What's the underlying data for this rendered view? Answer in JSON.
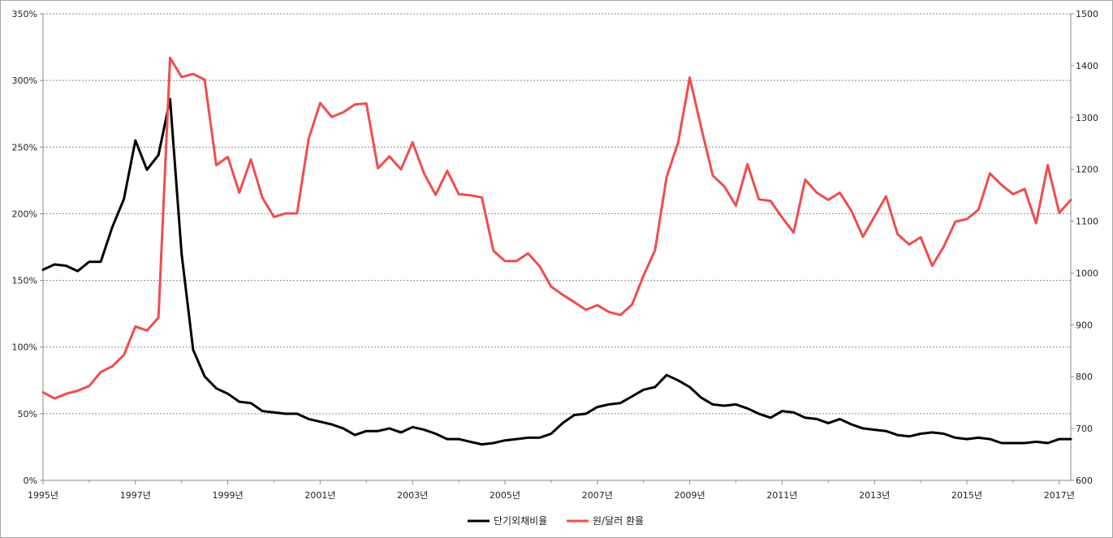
{
  "chart_data": {
    "type": "line",
    "grid": "horizontal dashed",
    "legend_position": "bottom",
    "x": {
      "unit": "year",
      "range": [
        1995,
        2017.25
      ],
      "tick_labels": [
        "1995년",
        "1997년",
        "1999년",
        "2001년",
        "2003년",
        "2005년",
        "2007년",
        "2009년",
        "2011년",
        "2013년",
        "2015년",
        "2017년"
      ]
    },
    "y_left": {
      "range": [
        0,
        350
      ],
      "tick_labels": [
        "0%",
        "50%",
        "100%",
        "150%",
        "200%",
        "250%",
        "300%",
        "350%"
      ]
    },
    "y_right": {
      "range": [
        600,
        1500
      ],
      "tick_labels": [
        "600",
        "700",
        "800",
        "900",
        "1000",
        "1100",
        "1200",
        "1300",
        "1400",
        "1500"
      ]
    },
    "series": [
      {
        "name": "단기외채비율",
        "axis": "left",
        "color": "#000000",
        "x": [
          1995.0,
          1995.25,
          1995.5,
          1995.75,
          1996.0,
          1996.25,
          1996.5,
          1996.75,
          1997.0,
          1997.25,
          1997.5,
          1997.75,
          1998.0,
          1998.25,
          1998.5,
          1998.75,
          1999.0,
          1999.25,
          1999.5,
          1999.75,
          2000.0,
          2000.25,
          2000.5,
          2000.75,
          2001.0,
          2001.25,
          2001.5,
          2001.75,
          2002.0,
          2002.25,
          2002.5,
          2002.75,
          2003.0,
          2003.25,
          2003.5,
          2003.75,
          2004.0,
          2004.25,
          2004.5,
          2004.75,
          2005.0,
          2005.25,
          2005.5,
          2005.75,
          2006.0,
          2006.25,
          2006.5,
          2006.75,
          2007.0,
          2007.25,
          2007.5,
          2007.75,
          2008.0,
          2008.25,
          2008.5,
          2008.75,
          2009.0,
          2009.25,
          2009.5,
          2009.75,
          2010.0,
          2010.25,
          2010.5,
          2010.75,
          2011.0,
          2011.25,
          2011.5,
          2011.75,
          2012.0,
          2012.25,
          2012.5,
          2012.75,
          2013.0,
          2013.25,
          2013.5,
          2013.75,
          2014.0,
          2014.25,
          2014.5,
          2014.75,
          2015.0,
          2015.25,
          2015.5,
          2015.75,
          2016.0,
          2016.25,
          2016.5,
          2016.75,
          2017.0,
          2017.25
        ],
        "values": [
          158,
          162,
          161,
          157,
          164,
          164,
          190,
          211,
          255,
          233,
          244,
          286,
          170,
          98,
          78,
          69,
          65,
          59,
          58,
          52,
          51,
          50,
          50,
          46,
          44,
          42,
          39,
          34,
          37,
          37,
          39,
          36,
          40,
          38,
          35,
          31,
          31,
          29,
          27,
          28,
          30,
          31,
          32,
          32,
          35,
          43,
          49,
          50,
          55,
          57,
          58,
          63,
          68,
          70,
          79,
          75,
          70,
          62,
          57,
          56,
          57,
          54,
          50,
          47,
          52,
          51,
          47,
          46,
          43,
          46,
          42,
          39,
          38,
          37,
          34,
          33,
          35,
          36,
          35,
          32,
          31,
          32,
          31,
          28,
          28,
          28,
          29,
          28,
          31,
          31
        ]
      },
      {
        "name": "원/달러 환율",
        "axis": "right",
        "color": "#ef4d4f",
        "x": [
          1995.0,
          1995.25,
          1995.5,
          1995.75,
          1996.0,
          1996.25,
          1996.5,
          1996.75,
          1997.0,
          1997.25,
          1997.5,
          1997.75,
          1998.0,
          1998.25,
          1998.5,
          1998.75,
          1999.0,
          1999.25,
          1999.5,
          1999.75,
          2000.0,
          2000.25,
          2000.5,
          2000.75,
          2001.0,
          2001.25,
          2001.5,
          2001.75,
          2002.0,
          2002.25,
          2002.5,
          2002.75,
          2003.0,
          2003.25,
          2003.5,
          2003.75,
          2004.0,
          2004.25,
          2004.5,
          2004.75,
          2005.0,
          2005.25,
          2005.5,
          2005.75,
          2006.0,
          2006.25,
          2006.5,
          2006.75,
          2007.0,
          2007.25,
          2007.5,
          2007.75,
          2008.0,
          2008.25,
          2008.5,
          2008.75,
          2009.0,
          2009.25,
          2009.5,
          2009.75,
          2010.0,
          2010.25,
          2010.5,
          2010.75,
          2011.0,
          2011.25,
          2011.5,
          2011.75,
          2012.0,
          2012.25,
          2012.5,
          2012.75,
          2013.0,
          2013.25,
          2013.5,
          2013.75,
          2014.0,
          2014.25,
          2014.5,
          2014.75,
          2015.0,
          2015.25,
          2015.5,
          2015.75,
          2016.0,
          2016.25,
          2016.5,
          2016.75,
          2017.0,
          2017.25
        ],
        "values": [
          770,
          758,
          767,
          773,
          782,
          809,
          820,
          842,
          897,
          889,
          914,
          1415,
          1378,
          1384,
          1373,
          1208,
          1224,
          1155,
          1219,
          1145,
          1108,
          1115,
          1115,
          1259,
          1328,
          1301,
          1310,
          1325,
          1327,
          1202,
          1225,
          1200,
          1252,
          1192,
          1151,
          1197,
          1152,
          1150,
          1146,
          1043,
          1023,
          1023,
          1038,
          1013,
          974,
          958,
          944,
          929,
          938,
          925,
          919,
          939,
          995,
          1044,
          1185,
          1252,
          1377,
          1280,
          1188,
          1167,
          1130,
          1210,
          1142,
          1139,
          1107,
          1078,
          1180,
          1155,
          1141,
          1155,
          1120,
          1070,
          1109,
          1148,
          1075,
          1055,
          1069,
          1014,
          1051,
          1099,
          1104,
          1122,
          1192,
          1170,
          1152,
          1162,
          1096,
          1208,
          1116,
          1141
        ]
      }
    ]
  }
}
